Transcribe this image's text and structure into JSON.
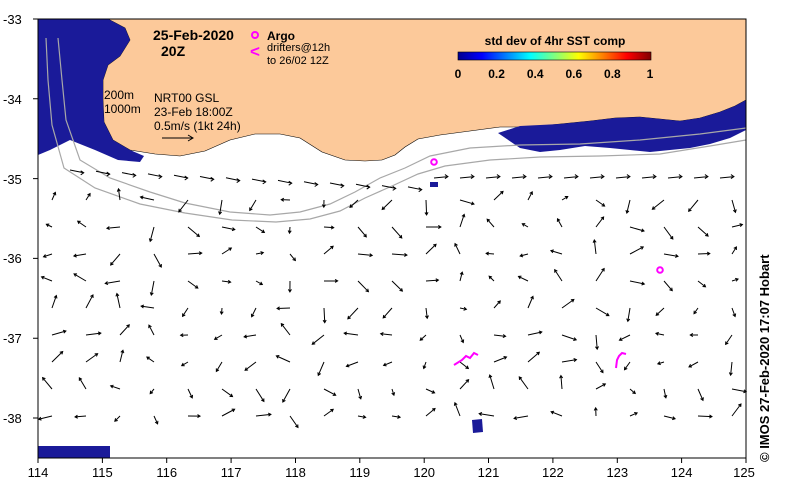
{
  "date_title": "25-Feb-2020",
  "time_title": "20Z",
  "argo": {
    "label": "Argo",
    "color": "#ff00ff"
  },
  "drifters": {
    "label_line1": "drifters@12h",
    "label_line2": "to 26/02 12Z",
    "symbol": "<",
    "color": "#ff00ff"
  },
  "colorbar": {
    "title": "std dev of 4hr SST comp",
    "ticks": [
      "0",
      "0.2",
      "0.4",
      "0.6",
      "0.8",
      "1"
    ]
  },
  "contours": {
    "label_200": "200m",
    "label_1000": "1000m"
  },
  "current_info": {
    "line1": "NRT00 GSL",
    "line2": "23-Feb 18:00Z",
    "line3": "0.5m/s (1kt 24h)"
  },
  "axes": {
    "lon_ticks": [
      "114",
      "115",
      "116",
      "117",
      "118",
      "119",
      "120",
      "121",
      "122",
      "123",
      "124",
      "125"
    ],
    "lat_ticks": [
      "-33",
      "-34",
      "-35",
      "-36",
      "-37",
      "-38"
    ]
  },
  "credit": "© IMOS 27-Feb-2020 17:07 Hobart",
  "colors": {
    "land": "#fcc99a",
    "high_sst_variance": "#1a1a99",
    "vector": "#000000",
    "contour": "#a8a8a8"
  }
}
